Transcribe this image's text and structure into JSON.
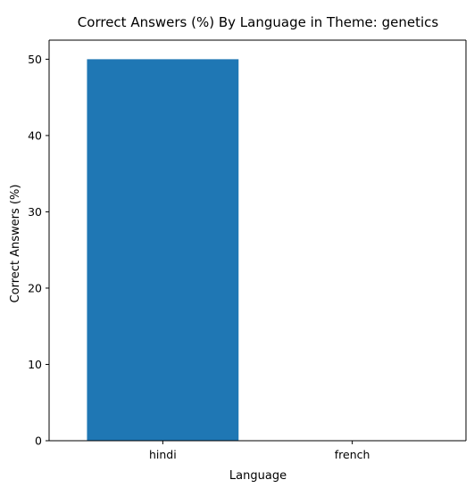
{
  "chart_data": {
    "type": "bar",
    "title": "Correct Answers (%) By Language in Theme: genetics",
    "xlabel": "Language",
    "ylabel": "Correct Answers (%)",
    "categories": [
      "hindi",
      "french"
    ],
    "values": [
      50,
      0
    ],
    "ylim": [
      0,
      52.5
    ],
    "yticks": [
      0,
      10,
      20,
      30,
      40,
      50
    ],
    "grid": false,
    "legend": "none",
    "bar_color": "#1f77b4"
  }
}
